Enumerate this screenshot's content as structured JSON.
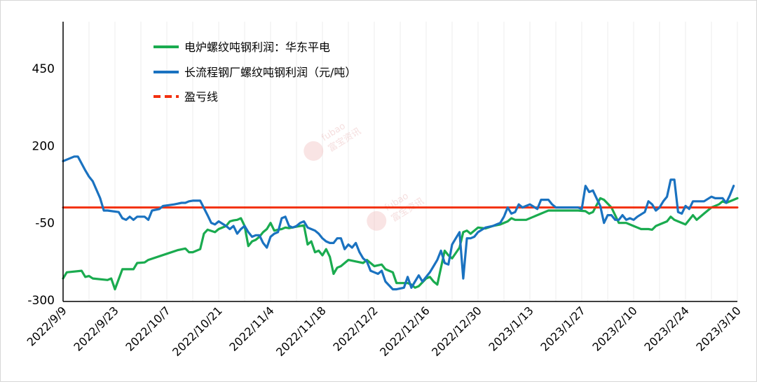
{
  "chart_data": {
    "type": "line",
    "title": "",
    "xlabel": "",
    "ylabel": "",
    "ylim": [
      -300,
      450
    ],
    "yticks": [
      450,
      200,
      -50,
      -300
    ],
    "x_tick_labels": [
      "2022/9/9",
      "2022/9/23",
      "2022/10/7",
      "2022/10/21",
      "2022/11/4",
      "2022/11/18",
      "2022/12/2",
      "2022/12/16",
      "2022/12/30",
      "2023/1/13",
      "2023/1/27",
      "2023/2/10",
      "2023/2/24",
      "2023/3/10"
    ],
    "x_range": [
      "2022-09-09",
      "2023-03-10"
    ],
    "legend_position": "top-left",
    "grid": {
      "vertical": true,
      "horizontal": false
    },
    "watermark": {
      "latin": "fubao",
      "text": "富宝资讯"
    },
    "series": [
      {
        "name": "电炉螺纹吨钢利润：华东平电",
        "color": "#1aab4f",
        "style": "solid",
        "points": [
          [
            "2022-09-09",
            -230
          ],
          [
            "2022-09-10",
            -210
          ],
          [
            "2022-09-14",
            -205
          ],
          [
            "2022-09-15",
            -225
          ],
          [
            "2022-09-16",
            -222
          ],
          [
            "2022-09-17",
            -230
          ],
          [
            "2022-09-21",
            -235
          ],
          [
            "2022-09-22",
            -230
          ],
          [
            "2022-09-23",
            -265
          ],
          [
            "2022-09-25",
            -200
          ],
          [
            "2022-09-28",
            -200
          ],
          [
            "2022-09-29",
            -180
          ],
          [
            "2022-10-01",
            -178
          ],
          [
            "2022-10-02",
            -170
          ],
          [
            "2022-10-07",
            -150
          ],
          [
            "2022-10-10",
            -138
          ],
          [
            "2022-10-12",
            -133
          ],
          [
            "2022-10-13",
            -145
          ],
          [
            "2022-10-14",
            -145
          ],
          [
            "2022-10-16",
            -135
          ],
          [
            "2022-10-17",
            -85
          ],
          [
            "2022-10-18",
            -72
          ],
          [
            "2022-10-20",
            -80
          ],
          [
            "2022-10-21",
            -70
          ],
          [
            "2022-10-23",
            -60
          ],
          [
            "2022-10-24",
            -45
          ],
          [
            "2022-10-25",
            -42
          ],
          [
            "2022-10-26",
            -40
          ],
          [
            "2022-10-27",
            -35
          ],
          [
            "2022-10-28",
            -60
          ],
          [
            "2022-10-29",
            -125
          ],
          [
            "2022-10-30",
            -110
          ],
          [
            "2022-10-31",
            -105
          ],
          [
            "2022-11-01",
            -95
          ],
          [
            "2022-11-02",
            -80
          ],
          [
            "2022-11-03",
            -70
          ],
          [
            "2022-11-04",
            -50
          ],
          [
            "2022-11-05",
            -75
          ],
          [
            "2022-11-06",
            -72
          ],
          [
            "2022-11-07",
            -70
          ],
          [
            "2022-11-08",
            -65
          ],
          [
            "2022-11-09",
            -67
          ],
          [
            "2022-11-11",
            -62
          ],
          [
            "2022-11-13",
            -58
          ],
          [
            "2022-11-14",
            -120
          ],
          [
            "2022-11-15",
            -110
          ],
          [
            "2022-11-16",
            -145
          ],
          [
            "2022-11-17",
            -140
          ],
          [
            "2022-11-18",
            -155
          ],
          [
            "2022-11-19",
            -135
          ],
          [
            "2022-11-20",
            -160
          ],
          [
            "2022-11-21",
            -215
          ],
          [
            "2022-11-22",
            -195
          ],
          [
            "2022-11-23",
            -190
          ],
          [
            "2022-11-25",
            -170
          ],
          [
            "2022-11-27",
            -175
          ],
          [
            "2022-11-29",
            -180
          ],
          [
            "2022-11-30",
            -170
          ],
          [
            "2022-12-02",
            -190
          ],
          [
            "2022-12-04",
            -185
          ],
          [
            "2022-12-05",
            -200
          ],
          [
            "2022-12-06",
            -205
          ],
          [
            "2022-12-07",
            -210
          ],
          [
            "2022-12-08",
            -245
          ],
          [
            "2022-12-11",
            -245
          ],
          [
            "2022-12-12",
            -250
          ],
          [
            "2022-12-13",
            -260
          ],
          [
            "2022-12-14",
            -255
          ],
          [
            "2022-12-16",
            -230
          ],
          [
            "2022-12-17",
            -225
          ],
          [
            "2022-12-18",
            -240
          ],
          [
            "2022-12-19",
            -250
          ],
          [
            "2022-12-21",
            -140
          ],
          [
            "2022-12-22",
            -155
          ],
          [
            "2022-12-23",
            -165
          ],
          [
            "2022-12-25",
            -130
          ],
          [
            "2022-12-26",
            -80
          ],
          [
            "2022-12-27",
            -75
          ],
          [
            "2022-12-28",
            -85
          ],
          [
            "2022-12-30",
            -65
          ],
          [
            "2023-01-01",
            -68
          ],
          [
            "2023-01-03",
            -60
          ],
          [
            "2023-01-05",
            -55
          ],
          [
            "2023-01-07",
            -45
          ],
          [
            "2023-01-08",
            -35
          ],
          [
            "2023-01-09",
            -40
          ],
          [
            "2023-01-12",
            -40
          ],
          [
            "2023-01-14",
            -30
          ],
          [
            "2023-01-16",
            -20
          ],
          [
            "2023-01-17",
            -15
          ],
          [
            "2023-01-18",
            -10
          ],
          [
            "2023-01-20",
            -10
          ],
          [
            "2023-01-26",
            -10
          ],
          [
            "2023-01-28",
            -12
          ],
          [
            "2023-01-29",
            -20
          ],
          [
            "2023-01-30",
            -15
          ],
          [
            "2023-02-01",
            30
          ],
          [
            "2023-02-02",
            25
          ],
          [
            "2023-02-04",
            0
          ],
          [
            "2023-02-06",
            -50
          ],
          [
            "2023-02-08",
            -50
          ],
          [
            "2023-02-10",
            -60
          ],
          [
            "2023-02-11",
            -65
          ],
          [
            "2023-02-12",
            -70
          ],
          [
            "2023-02-14",
            -70
          ],
          [
            "2023-02-15",
            -72
          ],
          [
            "2023-02-16",
            -60
          ],
          [
            "2023-02-17",
            -55
          ],
          [
            "2023-02-19",
            -45
          ],
          [
            "2023-02-20",
            -30
          ],
          [
            "2023-02-21",
            -40
          ],
          [
            "2023-02-22",
            -45
          ],
          [
            "2023-02-24",
            -55
          ],
          [
            "2023-02-26",
            -25
          ],
          [
            "2023-02-27",
            -40
          ],
          [
            "2023-03-01",
            -20
          ],
          [
            "2023-03-03",
            0
          ],
          [
            "2023-03-05",
            10
          ],
          [
            "2023-03-06",
            20
          ],
          [
            "2023-03-07",
            15
          ],
          [
            "2023-03-09",
            25
          ],
          [
            "2023-03-10",
            30
          ]
        ]
      },
      {
        "name": "长流程钢厂螺纹吨钢利润（元/吨）",
        "color": "#1a72c0",
        "style": "solid",
        "points": [
          [
            "2022-09-09",
            150
          ],
          [
            "2022-09-10",
            155
          ],
          [
            "2022-09-12",
            165
          ],
          [
            "2022-09-13",
            165
          ],
          [
            "2022-09-15",
            120
          ],
          [
            "2022-09-16",
            100
          ],
          [
            "2022-09-17",
            85
          ],
          [
            "2022-09-19",
            30
          ],
          [
            "2022-09-20",
            -10
          ],
          [
            "2022-09-21",
            -10
          ],
          [
            "2022-09-24",
            -15
          ],
          [
            "2022-09-25",
            -35
          ],
          [
            "2022-09-26",
            -40
          ],
          [
            "2022-09-27",
            -30
          ],
          [
            "2022-09-28",
            -40
          ],
          [
            "2022-09-29",
            -30
          ],
          [
            "2022-10-01",
            -30
          ],
          [
            "2022-10-02",
            -40
          ],
          [
            "2022-10-03",
            -10
          ],
          [
            "2022-10-05",
            -5
          ],
          [
            "2022-10-06",
            5
          ],
          [
            "2022-10-09",
            10
          ],
          [
            "2022-10-11",
            15
          ],
          [
            "2022-10-12",
            15
          ],
          [
            "2022-10-13",
            20
          ],
          [
            "2022-10-14",
            22
          ],
          [
            "2022-10-16",
            22
          ],
          [
            "2022-10-18",
            -25
          ],
          [
            "2022-10-19",
            -50
          ],
          [
            "2022-10-20",
            -55
          ],
          [
            "2022-10-21",
            -45
          ],
          [
            "2022-10-23",
            -60
          ],
          [
            "2022-10-24",
            -70
          ],
          [
            "2022-10-25",
            -60
          ],
          [
            "2022-10-26",
            -85
          ],
          [
            "2022-10-27",
            -70
          ],
          [
            "2022-10-28",
            -60
          ],
          [
            "2022-10-29",
            -80
          ],
          [
            "2022-10-30",
            -95
          ],
          [
            "2022-10-31",
            -90
          ],
          [
            "2022-11-01",
            -90
          ],
          [
            "2022-11-02",
            -115
          ],
          [
            "2022-11-03",
            -130
          ],
          [
            "2022-11-04",
            -95
          ],
          [
            "2022-11-05",
            -85
          ],
          [
            "2022-11-06",
            -80
          ],
          [
            "2022-11-07",
            -35
          ],
          [
            "2022-11-08",
            -30
          ],
          [
            "2022-11-09",
            -60
          ],
          [
            "2022-11-10",
            -65
          ],
          [
            "2022-11-11",
            -60
          ],
          [
            "2022-11-12",
            -50
          ],
          [
            "2022-11-13",
            -45
          ],
          [
            "2022-11-14",
            -65
          ],
          [
            "2022-11-15",
            -70
          ],
          [
            "2022-11-16",
            -75
          ],
          [
            "2022-11-17",
            -85
          ],
          [
            "2022-11-18",
            -100
          ],
          [
            "2022-11-19",
            -110
          ],
          [
            "2022-11-20",
            -115
          ],
          [
            "2022-11-21",
            -115
          ],
          [
            "2022-11-22",
            -100
          ],
          [
            "2022-11-23",
            -100
          ],
          [
            "2022-11-24",
            -135
          ],
          [
            "2022-11-25",
            -120
          ],
          [
            "2022-11-26",
            -130
          ],
          [
            "2022-11-27",
            -115
          ],
          [
            "2022-11-28",
            -145
          ],
          [
            "2022-11-29",
            -165
          ],
          [
            "2022-11-30",
            -175
          ],
          [
            "2022-12-01",
            -205
          ],
          [
            "2022-12-02",
            -210
          ],
          [
            "2022-12-03",
            -215
          ],
          [
            "2022-12-04",
            -205
          ],
          [
            "2022-12-05",
            -240
          ],
          [
            "2022-12-07",
            -265
          ],
          [
            "2022-12-08",
            -265
          ],
          [
            "2022-12-10",
            -260
          ],
          [
            "2022-12-11",
            -225
          ],
          [
            "2022-12-12",
            -260
          ],
          [
            "2022-12-13",
            -240
          ],
          [
            "2022-12-14",
            -220
          ],
          [
            "2022-12-15",
            -240
          ],
          [
            "2022-12-16",
            -225
          ],
          [
            "2022-12-17",
            -210
          ],
          [
            "2022-12-18",
            -190
          ],
          [
            "2022-12-19",
            -170
          ],
          [
            "2022-12-20",
            -140
          ],
          [
            "2022-12-21",
            -180
          ],
          [
            "2022-12-22",
            -185
          ],
          [
            "2022-12-23",
            -120
          ],
          [
            "2022-12-24",
            -100
          ],
          [
            "2022-12-25",
            -80
          ],
          [
            "2022-12-26",
            -230
          ],
          [
            "2022-12-27",
            -100
          ],
          [
            "2022-12-28",
            -100
          ],
          [
            "2022-12-29",
            -95
          ],
          [
            "2022-12-30",
            -80
          ],
          [
            "2023-01-01",
            -65
          ],
          [
            "2023-01-03",
            -60
          ],
          [
            "2023-01-04",
            -55
          ],
          [
            "2023-01-05",
            -50
          ],
          [
            "2023-01-06",
            -30
          ],
          [
            "2023-01-07",
            0
          ],
          [
            "2023-01-08",
            -20
          ],
          [
            "2023-01-09",
            -15
          ],
          [
            "2023-01-10",
            10
          ],
          [
            "2023-01-11",
            0
          ],
          [
            "2023-01-12",
            5
          ],
          [
            "2023-01-13",
            10
          ],
          [
            "2023-01-15",
            -5
          ],
          [
            "2023-01-16",
            25
          ],
          [
            "2023-01-18",
            25
          ],
          [
            "2023-01-19",
            10
          ],
          [
            "2023-01-20",
            0
          ],
          [
            "2023-01-26",
            0
          ],
          [
            "2023-01-27",
            -5
          ],
          [
            "2023-01-28",
            70
          ],
          [
            "2023-01-29",
            50
          ],
          [
            "2023-01-30",
            55
          ],
          [
            "2023-01-31",
            30
          ],
          [
            "2023-02-01",
            5
          ],
          [
            "2023-02-02",
            -50
          ],
          [
            "2023-02-03",
            -25
          ],
          [
            "2023-02-04",
            -25
          ],
          [
            "2023-02-05",
            -40
          ],
          [
            "2023-02-06",
            -40
          ],
          [
            "2023-02-07",
            -25
          ],
          [
            "2023-02-08",
            -40
          ],
          [
            "2023-02-09",
            -35
          ],
          [
            "2023-02-10",
            -40
          ],
          [
            "2023-02-11",
            -30
          ],
          [
            "2023-02-13",
            -15
          ],
          [
            "2023-02-14",
            20
          ],
          [
            "2023-02-15",
            10
          ],
          [
            "2023-02-16",
            -10
          ],
          [
            "2023-02-17",
            0
          ],
          [
            "2023-02-18",
            20
          ],
          [
            "2023-02-19",
            35
          ],
          [
            "2023-02-20",
            90
          ],
          [
            "2023-02-21",
            90
          ],
          [
            "2023-02-22",
            -15
          ],
          [
            "2023-02-23",
            -20
          ],
          [
            "2023-02-24",
            5
          ],
          [
            "2023-02-25",
            -5
          ],
          [
            "2023-02-26",
            20
          ],
          [
            "2023-02-27",
            20
          ],
          [
            "2023-03-01",
            20
          ],
          [
            "2023-03-03",
            35
          ],
          [
            "2023-03-04",
            30
          ],
          [
            "2023-03-05",
            30
          ],
          [
            "2023-03-06",
            30
          ],
          [
            "2023-03-07",
            15
          ],
          [
            "2023-03-08",
            40
          ],
          [
            "2023-03-09",
            70
          ]
        ]
      },
      {
        "name": "盈亏线",
        "color": "#f2300f",
        "style": "dashed",
        "points": [
          [
            "2022-09-09",
            0
          ],
          [
            "2023-03-10",
            0
          ]
        ]
      }
    ]
  }
}
